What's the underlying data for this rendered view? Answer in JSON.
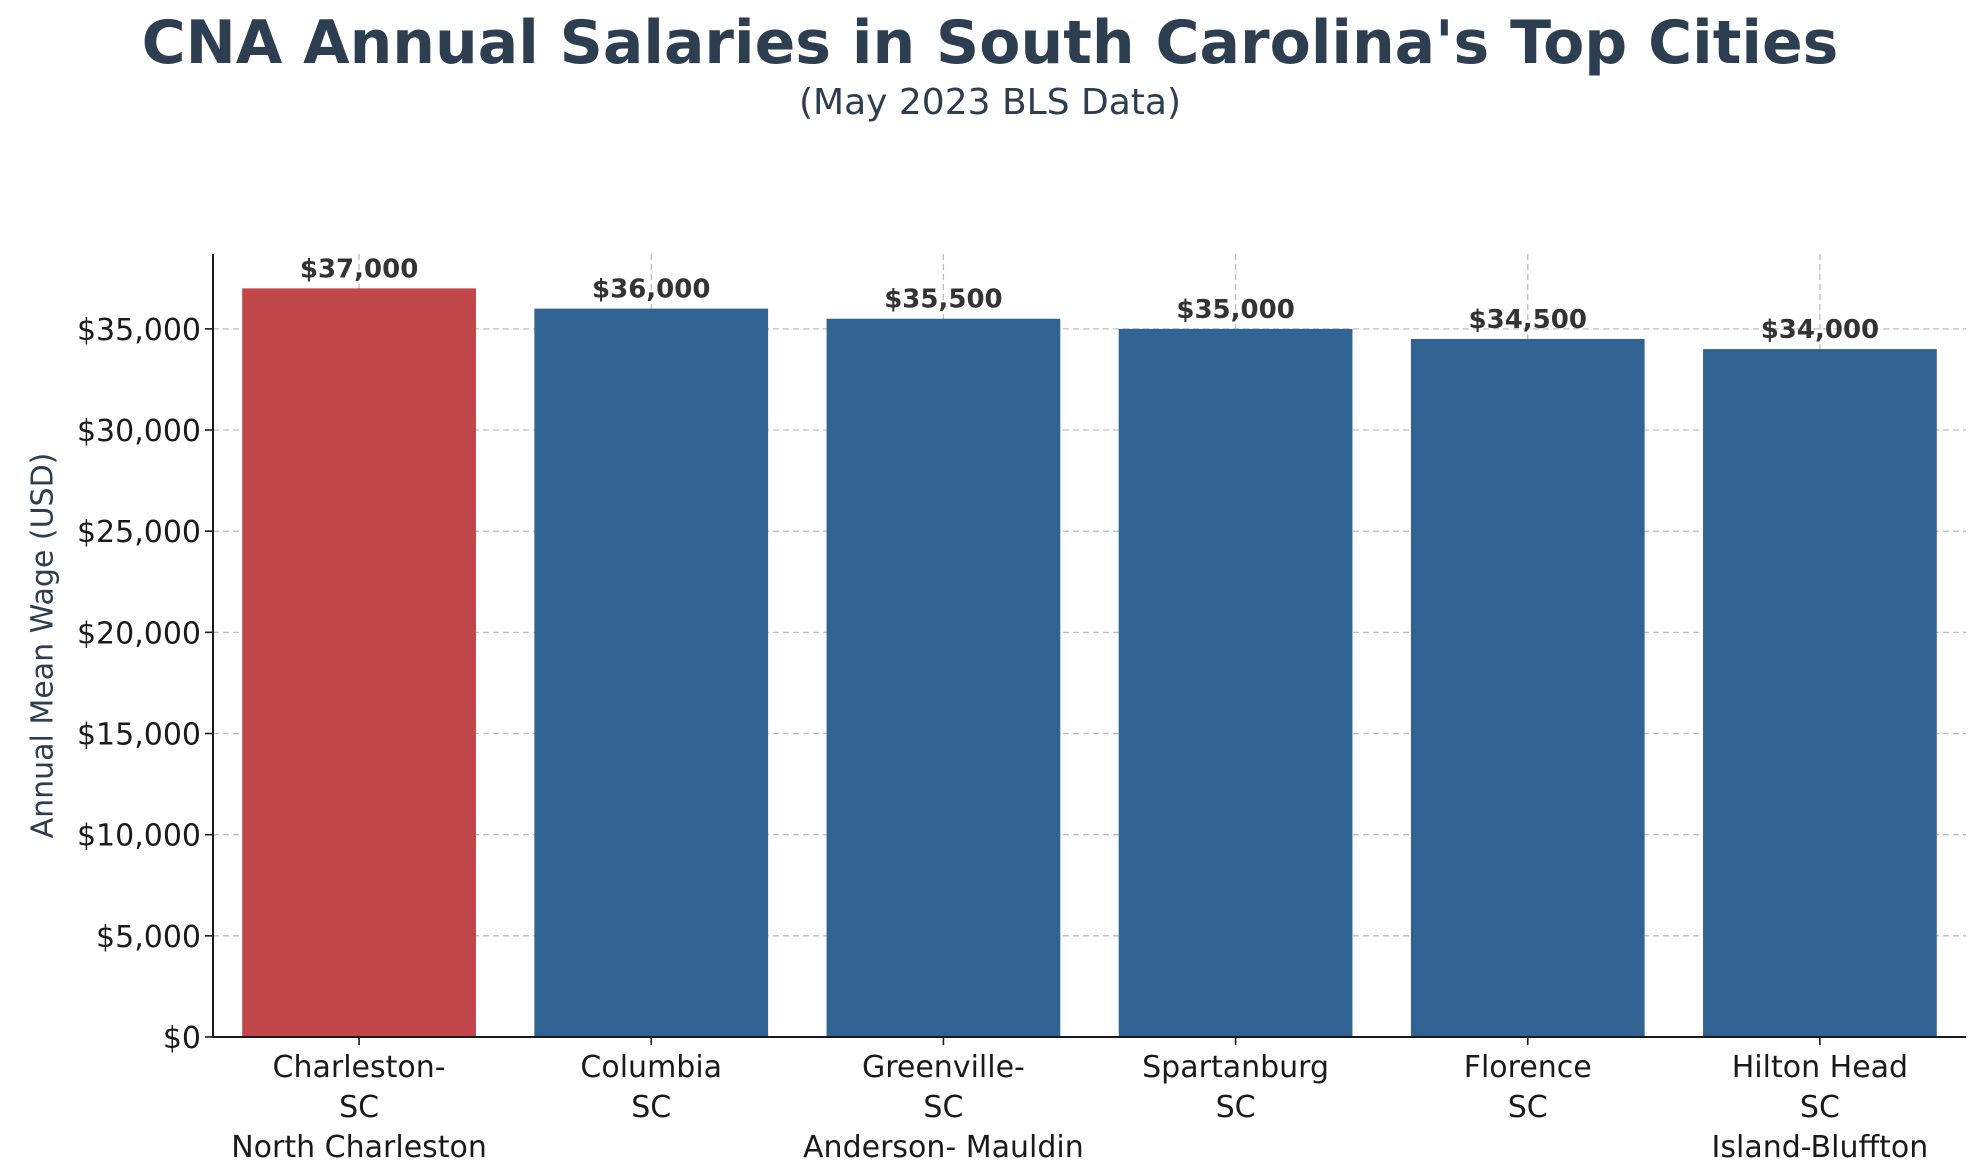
{
  "chart_data": {
    "type": "bar",
    "title": "CNA Annual Salaries in South Carolina's Top Cities",
    "subtitle": "(May 2023 BLS Data)",
    "ylabel": "Annual Mean Wage (USD)",
    "xlabel": "",
    "ylim": [
      0,
      38700
    ],
    "yticks": [
      {
        "value": 0,
        "label": "$0"
      },
      {
        "value": 5000,
        "label": "$5,000"
      },
      {
        "value": 10000,
        "label": "$10,000"
      },
      {
        "value": 15000,
        "label": "$15,000"
      },
      {
        "value": 20000,
        "label": "$20,000"
      },
      {
        "value": 25000,
        "label": "$25,000"
      },
      {
        "value": 30000,
        "label": "$30,000"
      },
      {
        "value": 35000,
        "label": "$35,000"
      }
    ],
    "categories": [
      [
        "Charleston-",
        "SC",
        "North Charleston"
      ],
      [
        "Columbia",
        "SC"
      ],
      [
        "Greenville-",
        "SC",
        "Anderson- Mauldin"
      ],
      [
        "Spartanburg",
        "SC"
      ],
      [
        "Florence",
        "SC"
      ],
      [
        "Hilton Head",
        "SC",
        "Island-Bluffton"
      ]
    ],
    "values": [
      37000,
      36000,
      35500,
      35000,
      34500,
      34000
    ],
    "data_labels": [
      "$37,000",
      "$36,000",
      "$35,500",
      "$35,000",
      "$34,500",
      "$34,000"
    ],
    "bar_colors": [
      "#c0464a",
      "#306392",
      "#306392",
      "#306392",
      "#306392",
      "#306392"
    ],
    "grid": true,
    "grid_style": "dashed",
    "colors": {
      "title": "#2c3e50",
      "text": "#1a1a1a",
      "value_label": "#333333",
      "grid": "#b8bfc6",
      "axis": "#1a1a1a"
    }
  }
}
